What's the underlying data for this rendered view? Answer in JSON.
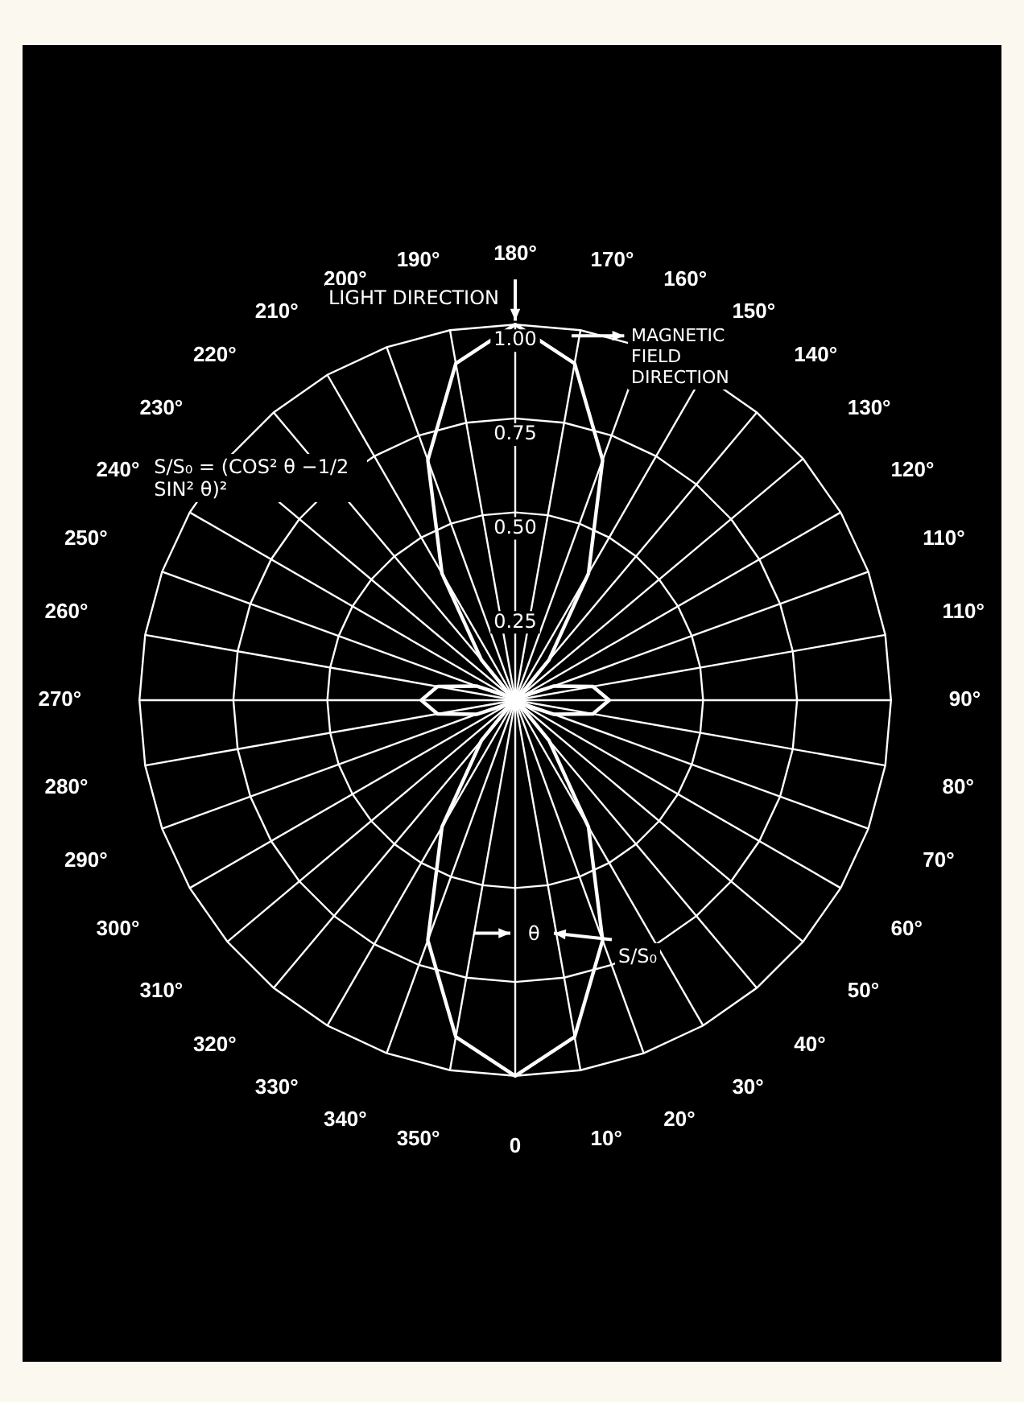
{
  "chart_data": {
    "type": "radar",
    "categories": [
      "180°",
      "170°",
      "160°",
      "150°",
      "140°",
      "130°",
      "120°",
      "110°",
      "110°",
      "90°",
      "80°",
      "70°",
      "60°",
      "50°",
      "40°",
      "30°",
      "20°",
      "10°",
      "0",
      "350°",
      "340°",
      "330°",
      "320°",
      "310°",
      "300°",
      "290°",
      "280°",
      "270°",
      "260°",
      "250°",
      "240°",
      "230°",
      "220°",
      "210°",
      "200°",
      "190°"
    ],
    "series": [
      {
        "color": "#ffffff",
        "values": [
          1,
          0.91,
          0.68,
          0.39,
          0.14,
          0.01,
          0.02,
          0.11,
          0.21,
          0.25,
          0.21,
          0.11,
          0.02,
          0.01,
          0.14,
          0.39,
          0.68,
          0.91,
          1,
          0.91,
          0.68,
          0.39,
          0.14,
          0.01,
          0.02,
          0.11,
          0.21,
          0.25,
          0.21,
          0.11,
          0.02,
          0.01,
          0.14,
          0.39,
          0.68,
          0.91
        ]
      }
    ],
    "ylim": [
      0,
      1
    ],
    "yticks": [
      {
        "value": 0.25,
        "label": "0.25"
      },
      {
        "value": 0.5,
        "label": "0.50"
      },
      {
        "value": 0.75,
        "label": "0.75"
      },
      {
        "value": 1,
        "label": "1.00"
      }
    ],
    "grid": true,
    "legend": false,
    "marker": "none",
    "annotations": [
      "LIGHT DIRECTION",
      "MAGNETIC FIELD DIRECTION",
      "S/S₀ = (COS² θ −1/2 SIN² θ)²",
      "θ",
      "S/S₀"
    ]
  }
}
